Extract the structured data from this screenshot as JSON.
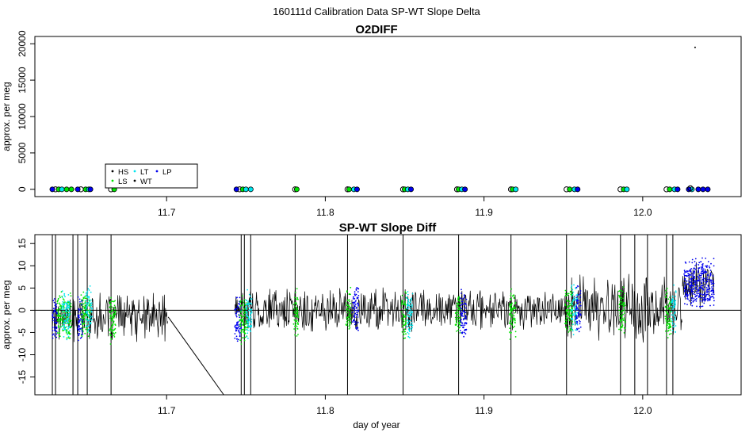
{
  "suptitle": "160111d   Calibration Data SP-WT Slope Delta",
  "colors": {
    "HS": "#000000",
    "LS": "#00e400",
    "LT": "#00e5ee",
    "WT": "#000000",
    "LP": "#0000ee",
    "trace": "#000000"
  },
  "chart_data": [
    {
      "type": "scatter",
      "title": "O2DIFF",
      "xlabel": "",
      "ylabel": "approx. per meg",
      "xlim": [
        11.617,
        12.062
      ],
      "ylim": [
        -1000,
        21000
      ],
      "xticks": [
        11.7,
        11.8,
        11.9,
        12.0
      ],
      "xtick_labels": [
        "11.7",
        "11.8",
        "11.9",
        "12.0"
      ],
      "yticks": [
        0,
        5000,
        10000,
        15000,
        20000
      ],
      "ytick_labels": [
        "0",
        "5000",
        "10000",
        "15000",
        "20000"
      ],
      "legend": {
        "placement": "lower-left",
        "entries": [
          {
            "label": "HS",
            "color": "#000000"
          },
          {
            "label": "LS",
            "color": "#00e400"
          },
          {
            "label": "LT",
            "color": "#00e5ee"
          },
          {
            "label": "WT",
            "color": "#000000"
          },
          {
            "label": "LP",
            "color": "#0000ee"
          }
        ]
      },
      "series": [
        {
          "name": "HS",
          "x": [
            11.63,
            11.646,
            11.665,
            11.746,
            11.781,
            11.814,
            11.849,
            11.883,
            11.917,
            11.952,
            11.986,
            12.015,
            12.033
          ],
          "y": [
            0,
            0,
            0,
            0,
            0,
            0,
            0,
            0,
            0,
            0,
            0,
            0,
            19500
          ]
        },
        {
          "name": "LS",
          "x": [
            11.632,
            11.637,
            11.64,
            11.649,
            11.667,
            11.748,
            11.782,
            11.815,
            11.85,
            11.884,
            11.918,
            11.954,
            11.988,
            12.017
          ],
          "y": [
            0,
            0,
            0,
            0,
            0,
            0,
            0,
            0,
            0,
            0,
            0,
            0,
            0,
            0
          ]
        },
        {
          "name": "LT",
          "x": [
            11.634,
            11.651,
            11.75,
            11.753,
            11.818,
            11.852,
            11.886,
            11.92,
            11.957,
            11.99,
            12.02,
            12.031
          ],
          "y": [
            0,
            0,
            0,
            0,
            0,
            0,
            0,
            0,
            0,
            0,
            0,
            0
          ]
        },
        {
          "name": "LP",
          "x": [
            11.628,
            11.644,
            11.652,
            11.744,
            11.82,
            11.854,
            11.888,
            11.959,
            12.022,
            12.029,
            12.035,
            12.038,
            12.041
          ],
          "y": [
            0,
            0,
            0,
            0,
            0,
            0,
            0,
            0,
            0,
            0,
            0,
            0,
            0
          ]
        },
        {
          "name": "WT",
          "x": [
            12.03
          ],
          "y": [
            150
          ]
        }
      ]
    },
    {
      "type": "line",
      "title": "SP-WT Slope Diff",
      "xlabel": "day of year",
      "ylabel": "approx. per meg",
      "xlim": [
        11.617,
        12.062
      ],
      "ylim": [
        -19,
        17
      ],
      "xticks": [
        11.7,
        11.8,
        11.9,
        12.0
      ],
      "xtick_labels": [
        "11.7",
        "11.8",
        "11.9",
        "12.0"
      ],
      "yticks": [
        -15,
        -10,
        -5,
        0,
        5,
        10,
        15
      ],
      "ytick_labels": [
        "-15",
        "-10",
        "-5",
        "0",
        "5",
        "10",
        "15"
      ],
      "reference_line_y": 0,
      "trace_segments": [
        {
          "x_start": 11.628,
          "x_end": 11.701,
          "center": -1.5,
          "noise": 5
        },
        {
          "x_start": 11.743,
          "x_end": 11.855,
          "center": 0,
          "noise": 5
        },
        {
          "x_start": 11.855,
          "x_end": 11.95,
          "center": 0.3,
          "noise": 4.5
        },
        {
          "x_start": 11.95,
          "x_end": 12.025,
          "center": 0.5,
          "noise": 7
        },
        {
          "x_start": 12.025,
          "x_end": 12.045,
          "center": 6,
          "noise": 5
        }
      ],
      "diagonal_line": {
        "x": [
          11.701,
          11.736
        ],
        "y": [
          -1.5,
          -19
        ]
      },
      "spike_x": [
        11.628,
        11.63,
        11.641,
        11.644,
        11.65,
        11.665,
        11.747,
        11.749,
        11.753,
        11.781,
        11.814,
        11.849,
        11.884,
        11.917,
        11.952,
        11.986,
        11.995,
        12.003,
        12.015,
        12.019
      ],
      "point_clusters": [
        {
          "name": "LS",
          "x_range": [
            11.631,
            11.64
          ],
          "center": -1
        },
        {
          "name": "LT",
          "x_range": [
            11.634,
            11.639
          ],
          "center": -1
        },
        {
          "name": "LP",
          "x_range": [
            11.628,
            11.631
          ],
          "center": -2
        },
        {
          "name": "LS",
          "x_range": [
            11.646,
            11.652
          ],
          "center": -1
        },
        {
          "name": "LT",
          "x_range": [
            11.649,
            11.653
          ],
          "center": 0
        },
        {
          "name": "LP",
          "x_range": [
            11.644,
            11.647
          ],
          "center": -2
        },
        {
          "name": "LS",
          "x_range": [
            11.664,
            11.668
          ],
          "center": -2
        },
        {
          "name": "LP",
          "x_range": [
            11.743,
            11.747
          ],
          "center": -2
        },
        {
          "name": "LS",
          "x_range": [
            11.746,
            11.751
          ],
          "center": -2
        },
        {
          "name": "LT",
          "x_range": [
            11.75,
            11.754
          ],
          "center": -1
        },
        {
          "name": "LS",
          "x_range": [
            11.78,
            11.783
          ],
          "center": -1
        },
        {
          "name": "LS",
          "x_range": [
            11.813,
            11.816
          ],
          "center": 0
        },
        {
          "name": "LP",
          "x_range": [
            11.817,
            11.821
          ],
          "center": 0
        },
        {
          "name": "LS",
          "x_range": [
            11.848,
            11.851
          ],
          "center": -1
        },
        {
          "name": "LT",
          "x_range": [
            11.851,
            11.855
          ],
          "center": -1
        },
        {
          "name": "LS",
          "x_range": [
            11.882,
            11.885
          ],
          "center": -1
        },
        {
          "name": "LP",
          "x_range": [
            11.885,
            11.889
          ],
          "center": -1
        },
        {
          "name": "LS",
          "x_range": [
            11.916,
            11.92
          ],
          "center": -1
        },
        {
          "name": "LS",
          "x_range": [
            11.951,
            11.956
          ],
          "center": 0
        },
        {
          "name": "LT",
          "x_range": [
            11.955,
            11.959
          ],
          "center": 0
        },
        {
          "name": "LP",
          "x_range": [
            11.958,
            11.961
          ],
          "center": 0
        },
        {
          "name": "LS",
          "x_range": [
            11.985,
            11.989
          ],
          "center": 0
        },
        {
          "name": "LS",
          "x_range": [
            12.014,
            12.018
          ],
          "center": -1
        },
        {
          "name": "LT",
          "x_range": [
            12.018,
            12.021
          ],
          "center": 0
        },
        {
          "name": "LP",
          "x_range": [
            12.026,
            12.045
          ],
          "center": 6
        }
      ]
    }
  ]
}
